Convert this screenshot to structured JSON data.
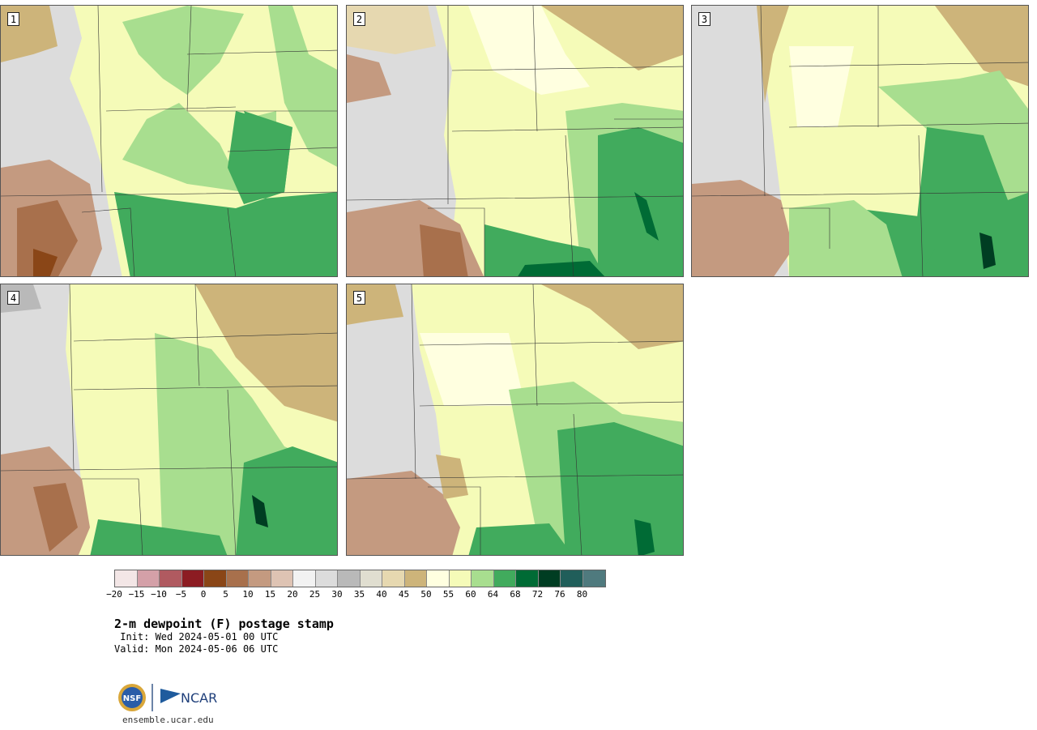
{
  "panels": [
    {
      "label": "1"
    },
    {
      "label": "2"
    },
    {
      "label": "3"
    },
    {
      "label": "4"
    },
    {
      "label": "5"
    }
  ],
  "colorbar": {
    "colors": [
      "#f3e6e6",
      "#d4a0a8",
      "#b05a60",
      "#8c1c22",
      "#8a4617",
      "#a8704c",
      "#c49a80",
      "#dec3b3",
      "#f2f2f2",
      "#dcdcdc",
      "#b9b9b9",
      "#e0ded0",
      "#e6d8b0",
      "#cdb47a",
      "#ffffe0",
      "#f5fbb8",
      "#a8de8f",
      "#41ab5d",
      "#006b35",
      "#003d22",
      "#205e5a",
      "#4f7a7e"
    ],
    "ticks": [
      "−20",
      "−15",
      "−10",
      "−5",
      "0",
      "5",
      "10",
      "15",
      "20",
      "25",
      "30",
      "35",
      "40",
      "45",
      "50",
      "55",
      "60",
      "64",
      "68",
      "72",
      "76",
      "80"
    ]
  },
  "title": "2-m dewpoint (F) postage stamp",
  "init": " Init: Wed 2024-05-01 00 UTC",
  "valid": "Valid: Mon 2024-05-06 06 UTC",
  "logos": {
    "nsf": "NSF",
    "ncar": "NCAR"
  },
  "footer_url": "ensemble.ucar.edu"
}
